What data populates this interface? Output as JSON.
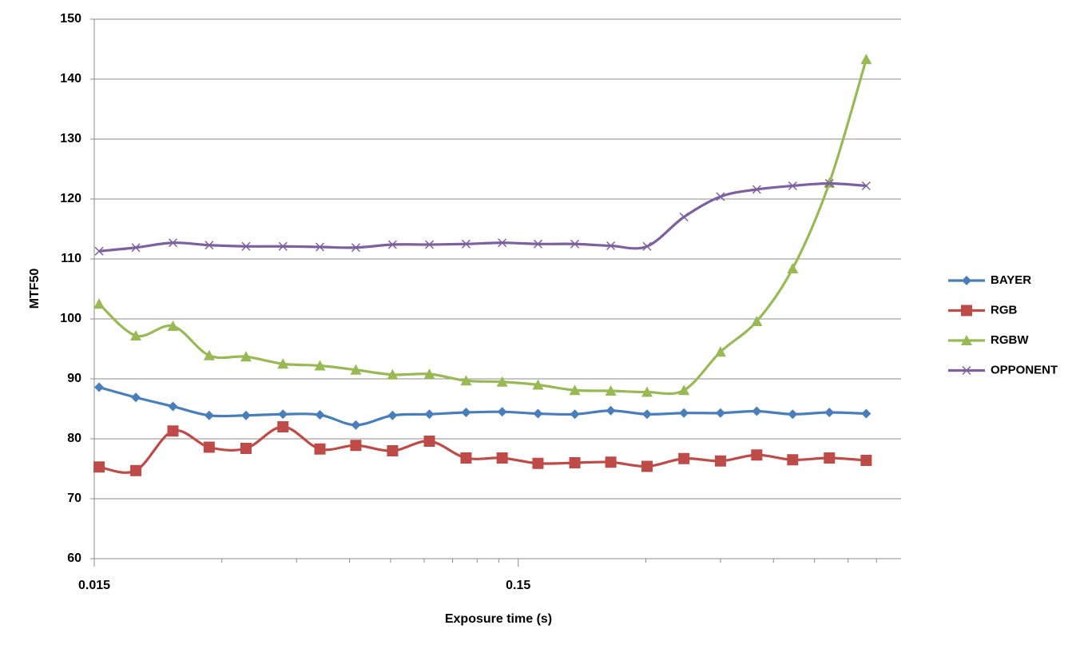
{
  "chart_data": {
    "type": "line",
    "x_label": "Exposure time (s)",
    "y_label": "MTF50",
    "xscale": "log",
    "xlim": [
      0.015,
      1.2
    ],
    "xticks": [
      0.015,
      0.15
    ],
    "xminorticks": [
      0.03,
      0.045,
      0.06,
      0.075,
      0.09,
      0.105,
      0.12,
      0.135,
      0.3,
      0.45,
      0.6,
      0.75,
      0.9,
      1.05
    ],
    "ylim": [
      60,
      150
    ],
    "yticks": [
      60,
      70,
      80,
      90,
      100,
      110,
      120,
      130,
      140,
      150
    ],
    "grid": true,
    "smooth": true,
    "legend": "right",
    "x": [
      0.0154,
      0.0188,
      0.023,
      0.028,
      0.0342,
      0.0418,
      0.0511,
      0.0621,
      0.0758,
      0.0926,
      0.113,
      0.1375,
      0.167,
      0.204,
      0.248,
      0.302,
      0.369,
      0.45,
      0.548,
      0.666,
      0.813,
      0.993
    ],
    "series": [
      {
        "name": "BAYER",
        "color": "#4a7ebb",
        "marker": "diamond",
        "values": [
          88.6,
          86.9,
          85.4,
          83.9,
          83.9,
          84.1,
          84.0,
          82.3,
          83.9,
          84.1,
          84.4,
          84.5,
          84.2,
          84.1,
          84.7,
          84.1,
          84.3,
          84.3,
          84.6,
          84.1,
          84.4,
          84.2
        ]
      },
      {
        "name": "RGB",
        "color": "#be4b48",
        "marker": "square",
        "values": [
          75.3,
          74.7,
          81.3,
          78.6,
          78.4,
          82.0,
          78.3,
          78.9,
          78.0,
          79.6,
          76.8,
          76.8,
          75.9,
          76.0,
          76.1,
          75.4,
          76.7,
          76.3,
          77.3,
          76.5,
          76.8,
          76.4
        ]
      },
      {
        "name": "RGBW",
        "color": "#98b954",
        "marker": "triangle",
        "values": [
          102.5,
          97.2,
          98.8,
          93.9,
          93.7,
          92.5,
          92.2,
          91.5,
          90.7,
          90.8,
          89.7,
          89.5,
          89.0,
          88.1,
          88.0,
          87.8,
          88.1,
          94.5,
          99.6,
          108.4,
          122.7,
          143.3
        ]
      },
      {
        "name": "OPPONENT",
        "color": "#7d60a0",
        "marker": "x",
        "values": [
          111.3,
          111.9,
          112.7,
          112.3,
          112.1,
          112.1,
          112.0,
          111.9,
          112.4,
          112.4,
          112.5,
          112.7,
          112.5,
          112.5,
          112.2,
          112.1,
          117.0,
          120.4,
          121.6,
          122.2,
          122.6,
          122.2
        ]
      }
    ]
  }
}
